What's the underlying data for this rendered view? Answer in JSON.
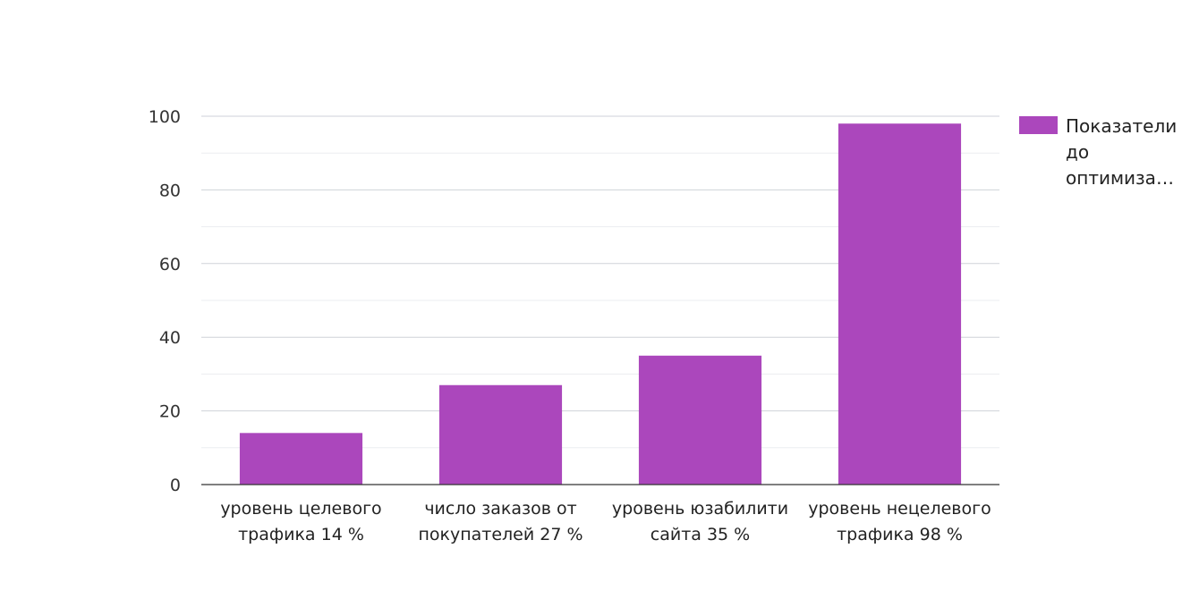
{
  "chart_data": {
    "type": "bar",
    "categories": [
      [
        "уровень целевого",
        "трафика 14 %"
      ],
      [
        "число заказов от",
        "покупателей 27 %"
      ],
      [
        "уровень юзабилити",
        "сайта 35 %"
      ],
      [
        "уровень нецелевого",
        "трафика 98 %"
      ]
    ],
    "series": [
      {
        "name": [
          "Показатели",
          "до",
          "оптимиза…"
        ],
        "values": [
          14,
          27,
          35,
          98
        ],
        "color": "#ab47bc"
      }
    ],
    "ylim": [
      0,
      100
    ],
    "yticks": [
      0,
      20,
      40,
      60,
      80,
      100
    ],
    "grid": true,
    "minor_grid": true,
    "legend_position": "right"
  },
  "colors": {
    "major_grid": "#cfd2d8",
    "minor_grid": "#ebedf0",
    "axis": "#333333"
  }
}
